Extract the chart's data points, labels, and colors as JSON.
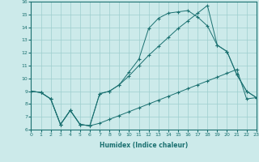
{
  "xlabel": "Humidex (Indice chaleur)",
  "bg_color": "#cceaea",
  "line_color": "#1a7070",
  "xlim": [
    0,
    23
  ],
  "ylim": [
    6,
    16
  ],
  "xticks": [
    0,
    1,
    2,
    3,
    4,
    5,
    6,
    7,
    8,
    9,
    10,
    11,
    12,
    13,
    14,
    15,
    16,
    17,
    18,
    19,
    20,
    21,
    22,
    23
  ],
  "yticks": [
    6,
    7,
    8,
    9,
    10,
    11,
    12,
    13,
    14,
    15,
    16
  ],
  "line1_x": [
    0,
    1,
    2,
    3,
    4,
    5,
    6,
    7,
    8,
    9,
    10,
    11,
    12,
    13,
    14,
    15,
    16,
    17,
    18,
    19,
    20,
    21,
    22,
    23
  ],
  "line1_y": [
    9.0,
    8.9,
    8.4,
    6.4,
    7.5,
    6.4,
    6.3,
    6.5,
    6.8,
    7.1,
    7.4,
    7.7,
    8.0,
    8.3,
    8.6,
    8.9,
    9.2,
    9.5,
    9.8,
    10.1,
    10.4,
    10.7,
    8.4,
    8.5
  ],
  "line2_x": [
    0,
    1,
    2,
    3,
    4,
    5,
    6,
    7,
    8,
    9,
    10,
    11,
    12,
    13,
    14,
    15,
    16,
    17,
    18,
    19,
    20,
    21,
    22,
    23
  ],
  "line2_y": [
    9.0,
    8.9,
    8.4,
    6.4,
    7.5,
    6.4,
    6.3,
    8.8,
    9.0,
    9.5,
    10.2,
    11.0,
    11.8,
    12.5,
    13.2,
    13.9,
    14.5,
    15.1,
    15.7,
    12.6,
    12.1,
    10.3,
    9.0,
    8.5
  ],
  "line3_x": [
    0,
    1,
    2,
    3,
    4,
    5,
    6,
    7,
    8,
    9,
    10,
    11,
    12,
    13,
    14,
    15,
    16,
    17,
    18,
    19,
    20,
    21,
    22,
    23
  ],
  "line3_y": [
    9.0,
    8.9,
    8.4,
    6.4,
    7.5,
    6.4,
    6.3,
    8.8,
    9.0,
    9.5,
    10.5,
    11.5,
    13.9,
    14.7,
    15.1,
    15.2,
    15.3,
    14.8,
    14.1,
    12.6,
    12.1,
    10.3,
    9.0,
    8.5
  ]
}
